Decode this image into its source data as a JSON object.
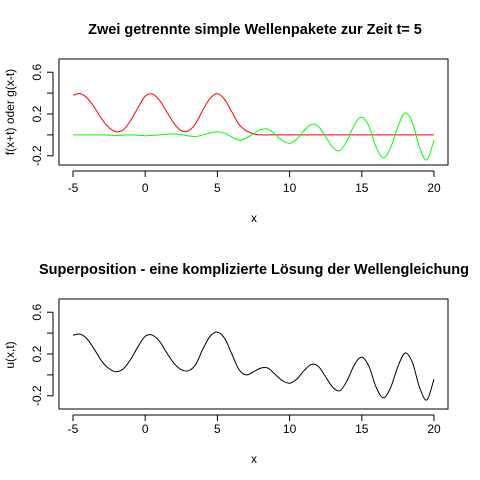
{
  "chart_data": [
    {
      "type": "line",
      "title": "Zwei getrennte simple Wellenpakete zur Zeit t= 5",
      "xlabel": "x",
      "ylabel": "f(x+t) oder g(x-t)",
      "xlim": [
        -5,
        20
      ],
      "ylim": [
        -0.25,
        0.65
      ],
      "xticks": [
        -5,
        0,
        5,
        10,
        15,
        20
      ],
      "yticks": [
        -0.2,
        0.2,
        0.6
      ],
      "ytick_labels": [
        "-0.2",
        "0.2",
        "0.6"
      ],
      "grid": false,
      "series": [
        {
          "color": "#ff0000",
          "x": [
            -5,
            -4.5,
            -4,
            -3.5,
            -3,
            -2.5,
            -2,
            -1.5,
            -1,
            -0.5,
            0,
            0.5,
            1,
            1.5,
            2,
            2.5,
            3,
            3.5,
            4,
            4.5,
            5,
            5.5,
            6,
            6.5,
            7,
            7.5,
            8,
            9,
            10,
            11,
            12,
            13,
            14,
            15,
            16,
            17,
            18,
            19,
            20
          ],
          "values": [
            0.38,
            0.395,
            0.35,
            0.26,
            0.15,
            0.07,
            0.03,
            0.05,
            0.14,
            0.26,
            0.37,
            0.39,
            0.33,
            0.22,
            0.11,
            0.04,
            0.04,
            0.11,
            0.24,
            0.35,
            0.395,
            0.34,
            0.22,
            0.1,
            0.04,
            0.01,
            0.0,
            0.0,
            0.0,
            0.0,
            0.0,
            0.0,
            0.0,
            0.0,
            0.0,
            0.0,
            0.0,
            0.0,
            0.0
          ]
        },
        {
          "color": "#00ff00",
          "x": [
            -5,
            -4,
            -3,
            -2,
            -1,
            0,
            0.5,
            1,
            2,
            3,
            3.5,
            4,
            4.5,
            5,
            5.5,
            6,
            6.5,
            7,
            7.5,
            8,
            8.5,
            9,
            9.5,
            10,
            10.5,
            11,
            11.5,
            12,
            12.5,
            13,
            13.5,
            14,
            14.5,
            15,
            15.5,
            16,
            16.5,
            17,
            17.5,
            18,
            18.5,
            19,
            19.5,
            20
          ],
          "values": [
            0.0,
            0.0,
            0.0,
            -0.005,
            0.0,
            -0.008,
            -0.005,
            0.0,
            0.01,
            -0.01,
            -0.015,
            0.0,
            0.02,
            0.03,
            0.015,
            -0.02,
            -0.05,
            -0.03,
            0.01,
            0.05,
            0.055,
            0.005,
            -0.055,
            -0.08,
            -0.04,
            0.04,
            0.1,
            0.08,
            -0.02,
            -0.12,
            -0.15,
            -0.05,
            0.1,
            0.17,
            0.08,
            -0.12,
            -0.22,
            -0.12,
            0.08,
            0.21,
            0.12,
            -0.12,
            -0.24,
            -0.05
          ]
        }
      ]
    },
    {
      "type": "line",
      "title": "Superposition - eine komplizierte Lösung der Wellengleichung",
      "xlabel": "x",
      "ylabel": "u(x,t)",
      "xlim": [
        -5,
        20
      ],
      "ylim": [
        -0.25,
        0.65
      ],
      "xticks": [
        -5,
        0,
        5,
        10,
        15,
        20
      ],
      "yticks": [
        -0.2,
        0.2,
        0.6
      ],
      "ytick_labels": [
        "-0.2",
        "0.2",
        "0.6"
      ],
      "grid": false,
      "series": [
        {
          "color": "#000000",
          "x": [
            -5,
            -4.5,
            -4,
            -3.5,
            -3,
            -2.5,
            -2,
            -1.5,
            -1,
            -0.5,
            0,
            0.5,
            1,
            1.5,
            2,
            2.5,
            3,
            3.5,
            4,
            4.5,
            5,
            5.5,
            6,
            6.5,
            7,
            7.5,
            8,
            8.5,
            9,
            9.5,
            10,
            10.5,
            11,
            11.5,
            12,
            12.5,
            13,
            13.5,
            14,
            14.5,
            15,
            15.5,
            16,
            16.5,
            17,
            17.5,
            18,
            18.5,
            19,
            19.5,
            20
          ],
          "values": [
            0.38,
            0.39,
            0.34,
            0.24,
            0.13,
            0.06,
            0.03,
            0.06,
            0.15,
            0.27,
            0.37,
            0.38,
            0.32,
            0.21,
            0.11,
            0.05,
            0.04,
            0.1,
            0.25,
            0.37,
            0.41,
            0.35,
            0.2,
            0.05,
            0.0,
            0.03,
            0.065,
            0.065,
            0.005,
            -0.055,
            -0.08,
            -0.04,
            0.04,
            0.1,
            0.08,
            -0.02,
            -0.12,
            -0.15,
            -0.05,
            0.1,
            0.17,
            0.08,
            -0.12,
            -0.22,
            -0.12,
            0.08,
            0.21,
            0.12,
            -0.12,
            -0.24,
            -0.04
          ]
        }
      ]
    }
  ]
}
